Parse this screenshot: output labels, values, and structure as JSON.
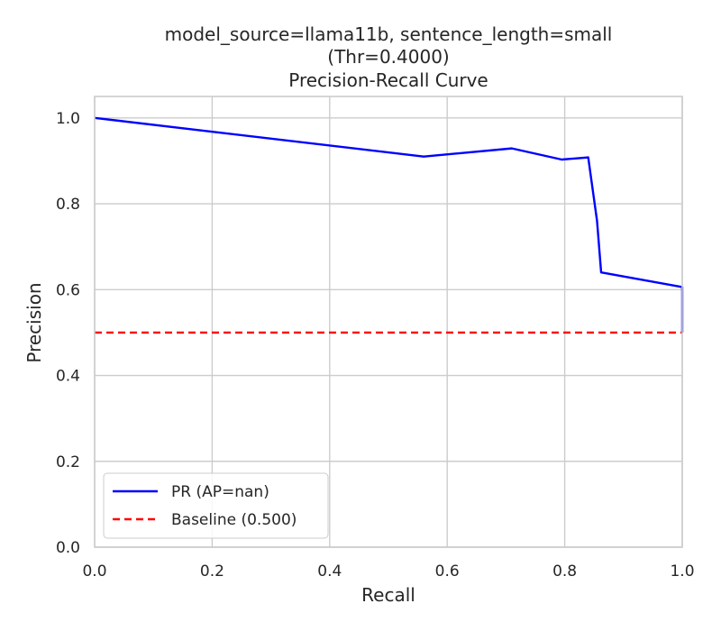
{
  "chart_data": {
    "type": "line",
    "title_lines": [
      "model_source=llama11b, sentence_length=small",
      "(Thr=0.4000)",
      "Precision-Recall Curve"
    ],
    "xlabel": "Recall",
    "ylabel": "Precision",
    "xlim": [
      0.0,
      1.0
    ],
    "ylim": [
      0.0,
      1.05
    ],
    "xticks": [
      "0.0",
      "0.2",
      "0.4",
      "0.6",
      "0.8",
      "1.0"
    ],
    "yticks": [
      "0.0",
      "0.2",
      "0.4",
      "0.6",
      "0.8",
      "1.0"
    ],
    "grid": true,
    "legend_position": "lower-left",
    "series": [
      {
        "name": "PR (AP=nan)",
        "color": "#0000ff",
        "style": "solid",
        "x": [
          0.0,
          0.56,
          0.71,
          0.795,
          0.84,
          0.855,
          0.862,
          1.0,
          1.0
        ],
        "y": [
          1.0,
          0.91,
          0.929,
          0.903,
          0.908,
          0.76,
          0.64,
          0.606,
          0.5
        ]
      },
      {
        "name": "Baseline (0.500)",
        "color": "#ff0000",
        "style": "dashed",
        "x": [
          0.0,
          1.0
        ],
        "y": [
          0.5,
          0.5
        ]
      }
    ]
  }
}
